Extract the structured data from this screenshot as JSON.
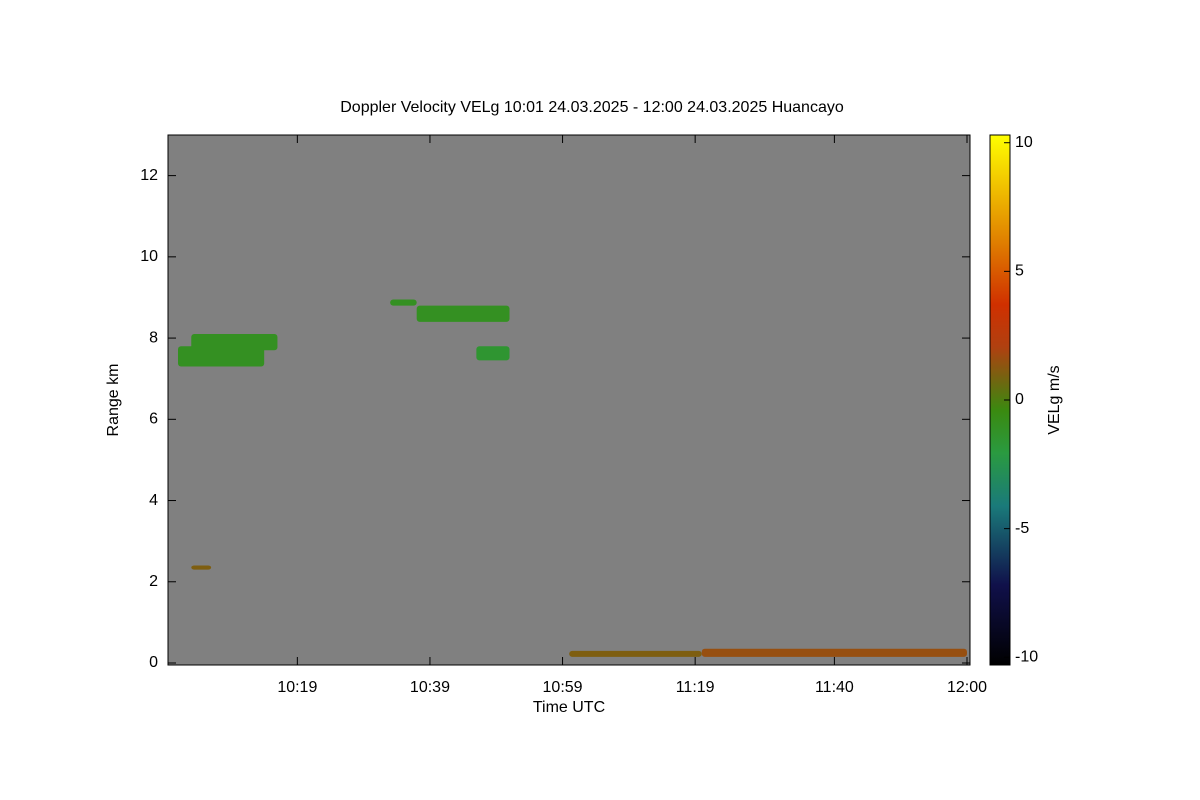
{
  "chart_data": {
    "type": "heatmap",
    "title": "Doppler Velocity VELg   10:01 24.03.2025 - 12:00 24.03.2025 Huancayo",
    "x_label": "Time UTC",
    "y_label": "Range km",
    "colorbar_label": "VELg m/s",
    "xlim": [
      "10:01",
      "12:00"
    ],
    "xticks": [
      "10:19",
      "10:39",
      "10:59",
      "11:19",
      "11:40",
      "12:00"
    ],
    "ylim": [
      0,
      13
    ],
    "yticks": [
      0,
      2,
      4,
      6,
      8,
      10,
      12
    ],
    "zlim": [
      -10.3,
      10.3
    ],
    "zticks": [
      10,
      5,
      0,
      -5,
      -10
    ],
    "background": "#808080",
    "echoes": {
      "x_start": [
        "10:01",
        "10:03",
        "10:33",
        "10:37",
        "10:46",
        "10:03",
        "11:00",
        "11:20"
      ],
      "x_end": [
        "10:14",
        "10:16",
        "10:37",
        "10:51",
        "10:51",
        "10:06",
        "11:20",
        "12:00"
      ],
      "y_low": [
        7.3,
        7.7,
        8.8,
        8.4,
        7.45,
        2.3,
        0.15,
        0.15
      ],
      "y_high": [
        7.8,
        8.1,
        8.95,
        8.8,
        7.8,
        2.4,
        0.3,
        0.35
      ],
      "values": [
        -1,
        -1,
        -1,
        -1,
        -1.5,
        1,
        1,
        1.5
      ]
    }
  }
}
